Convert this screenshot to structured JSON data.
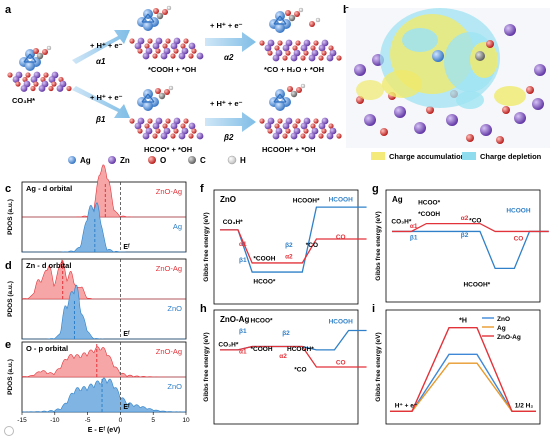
{
  "panel_letters": [
    "a",
    "b",
    "c",
    "d",
    "e",
    "f",
    "g",
    "h",
    "i"
  ],
  "panel_a": {
    "start": "CO₃H*",
    "step_top": "+ H⁺ + e⁻",
    "alpha1": "α1",
    "inter_top": "*COOH + *OH",
    "step_top2": "+ H⁺ + e⁻",
    "alpha2": "α2",
    "final_top": "*CO + H₂O + *OH",
    "step_bot": "+ H⁺ + e⁻",
    "beta1": "β1",
    "inter_bot": "HCOO* + *OH",
    "step_bot2": "+ H⁺ + e⁻",
    "beta2": "β2",
    "final_bot": "HCOOH* + *OH"
  },
  "atom_legend": [
    {
      "symbol": "Ag",
      "color": "#3f88d8"
    },
    {
      "symbol": "Zn",
      "color": "#7b4bc2"
    },
    {
      "symbol": "O",
      "color": "#e0221f"
    },
    {
      "symbol": "C",
      "color": "#777777"
    },
    {
      "symbol": "H",
      "color": "#f2f2f2"
    }
  ],
  "panel_b": {
    "accum": "Charge accumulation",
    "deplet": "Charge depletion",
    "accum_color": "#f3ea7a",
    "deplet_color": "#8fdcee"
  },
  "pdos": {
    "ylabel": "PDOS (a.u.)",
    "xlabel": "E - Eᶠ (eV)",
    "ef": "Eᶠ",
    "c_title": "Ag - d orbital",
    "c_top": "ZnO-Ag",
    "c_bot": "Ag",
    "d_title": "Zn - d orbital",
    "d_top": "ZnO-Ag",
    "d_bot": "ZnO",
    "e_title": "O - p orbital",
    "e_top": "ZnO-Ag",
    "e_bot": "ZnO",
    "ticks": [
      "-15",
      "-10",
      "-5",
      "0",
      "5",
      "10"
    ],
    "top_color": "#e2333a",
    "bot_color": "#2f80c8"
  },
  "energy_panels": {
    "ylabel": "Gibbs free energy (eV)",
    "f": {
      "title": "ZnO",
      "labels": [
        "CO₃H*",
        "α1",
        "β1",
        "*COOH",
        "HCOO*",
        "β2",
        "α2",
        "HCOOH*",
        "*CO",
        "HCOOH",
        "CO"
      ]
    },
    "g": {
      "title": "Ag",
      "labels": [
        "CO₃H*",
        "α1",
        "β1",
        "HCOO*",
        "*COOH",
        "α2",
        "*CO",
        "β2",
        "HCOOH*",
        "HCOOH",
        "CO"
      ]
    },
    "h": {
      "title": "ZnO-Ag",
      "labels": [
        "CO₃H*",
        "β1",
        "α1",
        "HCOO*",
        "*COOH",
        "β2",
        "HCOOH*",
        "α2",
        "*CO",
        "HCOOH",
        "CO"
      ]
    },
    "blue": "#2f80c8",
    "red": "#e2333a"
  },
  "chart_data": {
    "type": "line",
    "ylabel": "Gibbs free energy (eV)",
    "categories": [
      "H⁺ + e⁻",
      "*H",
      "1/2 H₂"
    ],
    "series": [
      {
        "name": "ZnO",
        "color": "#3f88d8",
        "values": [
          0,
          0.45,
          0
        ]
      },
      {
        "name": "Ag",
        "color": "#e89a2c",
        "values": [
          0,
          0.38,
          0
        ]
      },
      {
        "name": "ZnO-Ag",
        "color": "#e2333a",
        "values": [
          0,
          0.66,
          0
        ]
      }
    ],
    "legend": "top-right",
    "title_label": "*H"
  }
}
